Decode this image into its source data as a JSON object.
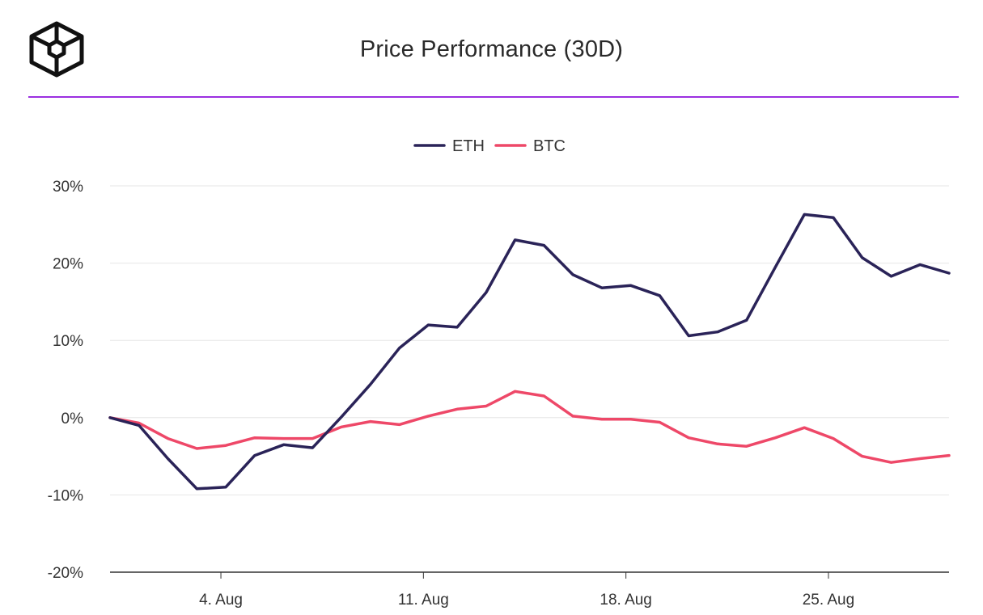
{
  "header": {
    "title": "Price Performance (30D)",
    "logo_icon": "cube-logo-icon",
    "rule_color": "#9b30e0"
  },
  "chart_data": {
    "type": "line",
    "title": "Price Performance (30D)",
    "xlabel": "",
    "ylabel": "",
    "ylim": [
      -20,
      30
    ],
    "y_ticks": [
      30,
      20,
      10,
      0,
      -10,
      -20
    ],
    "y_tick_labels": [
      "30%",
      "20%",
      "10%",
      "0%",
      "-10%",
      "-20%"
    ],
    "x_range_days": [
      "Jul 31",
      "Aug 29"
    ],
    "x_ticks": [
      {
        "label": "4. Aug",
        "day": 4
      },
      {
        "label": "11. Aug",
        "day": 11
      },
      {
        "label": "18. Aug",
        "day": 18
      },
      {
        "label": "25. Aug",
        "day": 25
      }
    ],
    "x_days": [
      1,
      2,
      3,
      4,
      5,
      6,
      7,
      8,
      9,
      10,
      11,
      12,
      13,
      14,
      15,
      16,
      17,
      18,
      19,
      20,
      21,
      22,
      23,
      24,
      25,
      26,
      27,
      28,
      29,
      30
    ],
    "legend_position": "top-center",
    "grid": true,
    "series": [
      {
        "name": "ETH",
        "color": "#2a2358",
        "values": [
          0,
          -1,
          -5.3,
          -9.2,
          -9.0,
          -4.9,
          -3.5,
          -3.9,
          0.1,
          4.3,
          9.0,
          12.0,
          11.7,
          16.2,
          23.0,
          22.3,
          18.5,
          16.8,
          17.1,
          15.8,
          10.6,
          11.1,
          12.6,
          19.5,
          26.3,
          25.9,
          20.7,
          18.3,
          19.8,
          18.7
        ]
      },
      {
        "name": "BTC",
        "color": "#ee4868",
        "values": [
          0,
          -0.7,
          -2.7,
          -4.0,
          -3.6,
          -2.6,
          -2.7,
          -2.7,
          -1.2,
          -0.5,
          -0.9,
          0.2,
          1.1,
          1.5,
          3.4,
          2.8,
          0.2,
          -0.2,
          -0.2,
          -0.6,
          -2.6,
          -3.4,
          -3.7,
          -2.6,
          -1.3,
          -2.7,
          -5.0,
          -5.8,
          -5.3,
          -4.9
        ]
      }
    ]
  }
}
